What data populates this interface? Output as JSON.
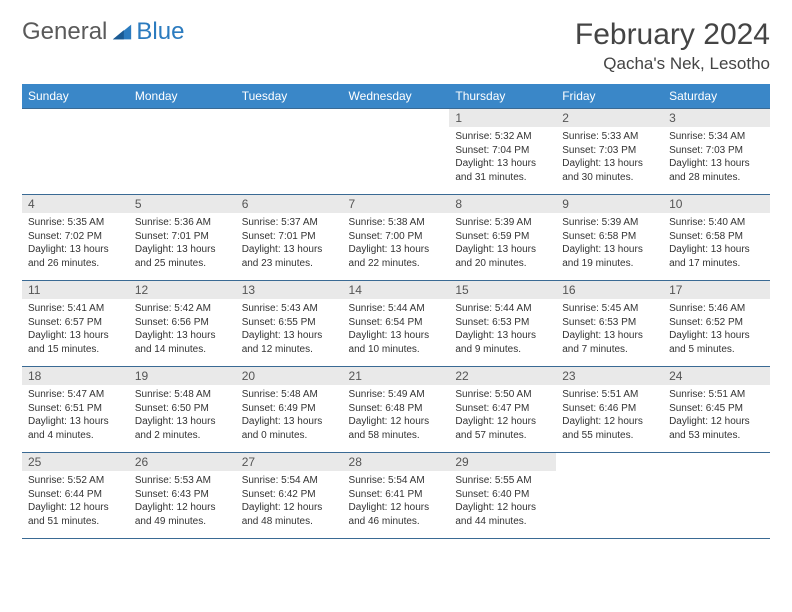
{
  "logo": {
    "word1": "General",
    "word2": "Blue"
  },
  "title": "February 2024",
  "location": "Qacha's Nek, Lesotho",
  "colors": {
    "header_bg": "#3a87c8",
    "header_text": "#ffffff",
    "cell_border": "#3a6a94",
    "daynum_bg": "#e9e9e9",
    "logo_gray": "#5a5a5a",
    "logo_blue": "#2b7bbf"
  },
  "day_headers": [
    "Sunday",
    "Monday",
    "Tuesday",
    "Wednesday",
    "Thursday",
    "Friday",
    "Saturday"
  ],
  "weeks": [
    [
      {
        "n": "",
        "lines": []
      },
      {
        "n": "",
        "lines": []
      },
      {
        "n": "",
        "lines": []
      },
      {
        "n": "",
        "lines": []
      },
      {
        "n": "1",
        "lines": [
          "Sunrise: 5:32 AM",
          "Sunset: 7:04 PM",
          "Daylight: 13 hours and 31 minutes."
        ]
      },
      {
        "n": "2",
        "lines": [
          "Sunrise: 5:33 AM",
          "Sunset: 7:03 PM",
          "Daylight: 13 hours and 30 minutes."
        ]
      },
      {
        "n": "3",
        "lines": [
          "Sunrise: 5:34 AM",
          "Sunset: 7:03 PM",
          "Daylight: 13 hours and 28 minutes."
        ]
      }
    ],
    [
      {
        "n": "4",
        "lines": [
          "Sunrise: 5:35 AM",
          "Sunset: 7:02 PM",
          "Daylight: 13 hours and 26 minutes."
        ]
      },
      {
        "n": "5",
        "lines": [
          "Sunrise: 5:36 AM",
          "Sunset: 7:01 PM",
          "Daylight: 13 hours and 25 minutes."
        ]
      },
      {
        "n": "6",
        "lines": [
          "Sunrise: 5:37 AM",
          "Sunset: 7:01 PM",
          "Daylight: 13 hours and 23 minutes."
        ]
      },
      {
        "n": "7",
        "lines": [
          "Sunrise: 5:38 AM",
          "Sunset: 7:00 PM",
          "Daylight: 13 hours and 22 minutes."
        ]
      },
      {
        "n": "8",
        "lines": [
          "Sunrise: 5:39 AM",
          "Sunset: 6:59 PM",
          "Daylight: 13 hours and 20 minutes."
        ]
      },
      {
        "n": "9",
        "lines": [
          "Sunrise: 5:39 AM",
          "Sunset: 6:58 PM",
          "Daylight: 13 hours and 19 minutes."
        ]
      },
      {
        "n": "10",
        "lines": [
          "Sunrise: 5:40 AM",
          "Sunset: 6:58 PM",
          "Daylight: 13 hours and 17 minutes."
        ]
      }
    ],
    [
      {
        "n": "11",
        "lines": [
          "Sunrise: 5:41 AM",
          "Sunset: 6:57 PM",
          "Daylight: 13 hours and 15 minutes."
        ]
      },
      {
        "n": "12",
        "lines": [
          "Sunrise: 5:42 AM",
          "Sunset: 6:56 PM",
          "Daylight: 13 hours and 14 minutes."
        ]
      },
      {
        "n": "13",
        "lines": [
          "Sunrise: 5:43 AM",
          "Sunset: 6:55 PM",
          "Daylight: 13 hours and 12 minutes."
        ]
      },
      {
        "n": "14",
        "lines": [
          "Sunrise: 5:44 AM",
          "Sunset: 6:54 PM",
          "Daylight: 13 hours and 10 minutes."
        ]
      },
      {
        "n": "15",
        "lines": [
          "Sunrise: 5:44 AM",
          "Sunset: 6:53 PM",
          "Daylight: 13 hours and 9 minutes."
        ]
      },
      {
        "n": "16",
        "lines": [
          "Sunrise: 5:45 AM",
          "Sunset: 6:53 PM",
          "Daylight: 13 hours and 7 minutes."
        ]
      },
      {
        "n": "17",
        "lines": [
          "Sunrise: 5:46 AM",
          "Sunset: 6:52 PM",
          "Daylight: 13 hours and 5 minutes."
        ]
      }
    ],
    [
      {
        "n": "18",
        "lines": [
          "Sunrise: 5:47 AM",
          "Sunset: 6:51 PM",
          "Daylight: 13 hours and 4 minutes."
        ]
      },
      {
        "n": "19",
        "lines": [
          "Sunrise: 5:48 AM",
          "Sunset: 6:50 PM",
          "Daylight: 13 hours and 2 minutes."
        ]
      },
      {
        "n": "20",
        "lines": [
          "Sunrise: 5:48 AM",
          "Sunset: 6:49 PM",
          "Daylight: 13 hours and 0 minutes."
        ]
      },
      {
        "n": "21",
        "lines": [
          "Sunrise: 5:49 AM",
          "Sunset: 6:48 PM",
          "Daylight: 12 hours and 58 minutes."
        ]
      },
      {
        "n": "22",
        "lines": [
          "Sunrise: 5:50 AM",
          "Sunset: 6:47 PM",
          "Daylight: 12 hours and 57 minutes."
        ]
      },
      {
        "n": "23",
        "lines": [
          "Sunrise: 5:51 AM",
          "Sunset: 6:46 PM",
          "Daylight: 12 hours and 55 minutes."
        ]
      },
      {
        "n": "24",
        "lines": [
          "Sunrise: 5:51 AM",
          "Sunset: 6:45 PM",
          "Daylight: 12 hours and 53 minutes."
        ]
      }
    ],
    [
      {
        "n": "25",
        "lines": [
          "Sunrise: 5:52 AM",
          "Sunset: 6:44 PM",
          "Daylight: 12 hours and 51 minutes."
        ]
      },
      {
        "n": "26",
        "lines": [
          "Sunrise: 5:53 AM",
          "Sunset: 6:43 PM",
          "Daylight: 12 hours and 49 minutes."
        ]
      },
      {
        "n": "27",
        "lines": [
          "Sunrise: 5:54 AM",
          "Sunset: 6:42 PM",
          "Daylight: 12 hours and 48 minutes."
        ]
      },
      {
        "n": "28",
        "lines": [
          "Sunrise: 5:54 AM",
          "Sunset: 6:41 PM",
          "Daylight: 12 hours and 46 minutes."
        ]
      },
      {
        "n": "29",
        "lines": [
          "Sunrise: 5:55 AM",
          "Sunset: 6:40 PM",
          "Daylight: 12 hours and 44 minutes."
        ]
      },
      {
        "n": "",
        "lines": []
      },
      {
        "n": "",
        "lines": []
      }
    ]
  ]
}
